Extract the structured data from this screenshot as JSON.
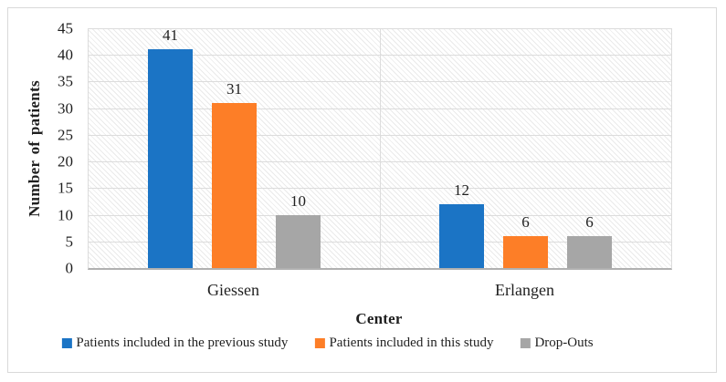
{
  "chart_data": {
    "type": "bar",
    "xlabel": "Center",
    "ylabel": "Number of patients",
    "categories": [
      "Giessen",
      "Erlangen"
    ],
    "series": [
      {
        "name": "Patients included in the previous study",
        "color": "#1b74c5",
        "values": [
          41,
          12
        ]
      },
      {
        "name": "Patients included in this study",
        "color": "#fd7e27",
        "values": [
          31,
          6
        ]
      },
      {
        "name": "Drop-Outs",
        "color": "#a6a6a6",
        "values": [
          10,
          6
        ]
      }
    ],
    "ylim": [
      0,
      45
    ],
    "yticks": [
      0,
      5,
      10,
      15,
      20,
      25,
      30,
      35,
      40,
      45
    ],
    "grid": "horizontal gridlines every 5, vertical separator between categories",
    "legend_position": "bottom",
    "plot_background": "diagonal-hatch"
  },
  "colors": {
    "gridline": "#dcdcdc",
    "axis_line": "#b0b0b0",
    "frame_border": "#d9d9d9",
    "text": "#1f1f1f"
  }
}
